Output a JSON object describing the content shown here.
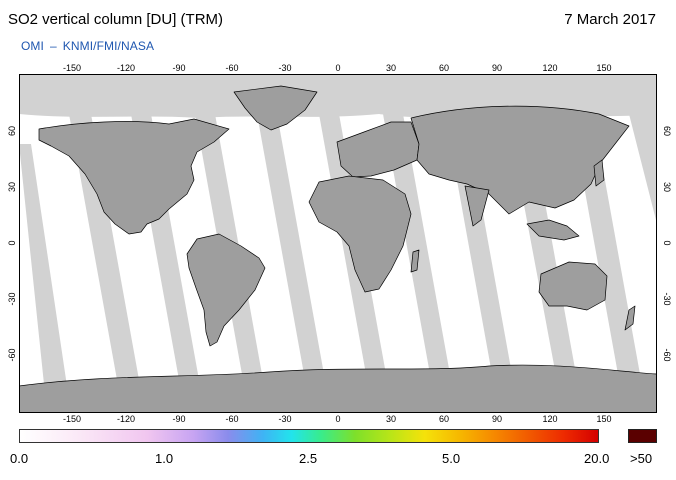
{
  "header": {
    "title": "SO2 vertical column [DU] (TRM)",
    "date": "7 March 2017",
    "source_left": "OMI",
    "source_sep": "–",
    "source_right": "KNMI/FMI/NASA"
  },
  "map": {
    "lon_ticks": [
      "-150",
      "-120",
      "-90",
      "-60",
      "-30",
      "0",
      "30",
      "60",
      "90",
      "120",
      "150"
    ],
    "lat_ticks": [
      "60",
      "30",
      "0",
      "-30",
      "-60"
    ],
    "colors": {
      "ocean": "#ffffff",
      "land": "#9e9e9e",
      "no_data": "#d2d2d2",
      "coast": "#000000"
    }
  },
  "legend": {
    "labels": [
      "0.0",
      "1.0",
      "2.5",
      "5.0",
      "20.0"
    ],
    "overflow_label": ">50",
    "overflow_color": "#5a0000"
  }
}
